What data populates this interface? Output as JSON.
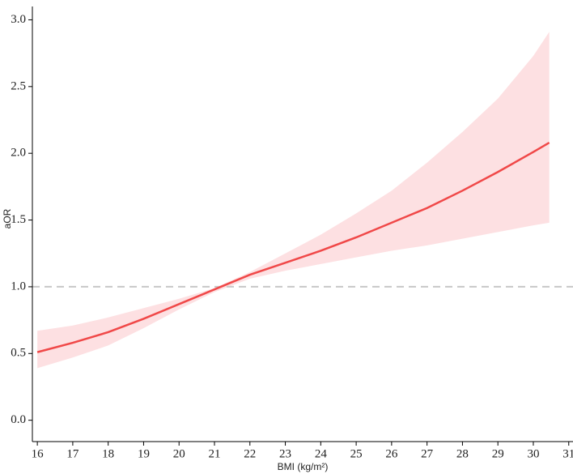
{
  "chart_data": {
    "type": "line-band",
    "xlabel": "BMI (kg/m²)",
    "ylabel": "aOR",
    "x": [
      16,
      17,
      18,
      19,
      20,
      21,
      22,
      23,
      24,
      25,
      26,
      27,
      28,
      29,
      30,
      30.45
    ],
    "y": [
      0.51,
      0.58,
      0.66,
      0.76,
      0.87,
      0.98,
      1.09,
      1.18,
      1.27,
      1.37,
      1.48,
      1.59,
      1.72,
      1.86,
      2.01,
      2.08
    ],
    "lower": [
      0.39,
      0.47,
      0.56,
      0.69,
      0.83,
      0.96,
      1.06,
      1.12,
      1.17,
      1.22,
      1.27,
      1.31,
      1.36,
      1.41,
      1.46,
      1.48
    ],
    "upper": [
      0.67,
      0.71,
      0.77,
      0.84,
      0.91,
      0.99,
      1.11,
      1.25,
      1.39,
      1.55,
      1.72,
      1.93,
      2.16,
      2.41,
      2.73,
      2.91
    ],
    "color": "#f04848",
    "band_color": "#fde0e2",
    "hline": 1,
    "hline_color": "#c8c8c8",
    "xlim": [
      15.86,
      31.12
    ],
    "ylim": [
      -0.16,
      3.1
    ],
    "xticks": [
      16,
      17,
      18,
      19,
      20,
      21,
      22,
      23,
      24,
      25,
      26,
      27,
      28,
      29,
      30,
      31
    ],
    "yticks": [
      {
        "value": 0,
        "label": "0.0"
      },
      0.5,
      {
        "value": 1,
        "label": "1.0"
      },
      1.5,
      {
        "value": 2,
        "label": "2.0"
      },
      2.5,
      {
        "value": 3,
        "label": "3.0"
      }
    ],
    "grid": false
  }
}
